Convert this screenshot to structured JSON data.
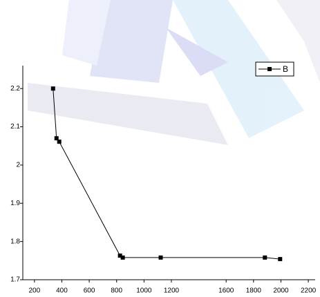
{
  "chart_data": {
    "type": "line",
    "x": [
      336,
      361,
      381,
      825,
      845,
      1122,
      1883,
      1994
    ],
    "series": [
      {
        "name": "B",
        "color": "#000000",
        "values": [
          2.2,
          2.07,
          2.061,
          1.763,
          1.758,
          1.758,
          1.758,
          1.754
        ]
      }
    ],
    "xlim": [
      115,
      2250
    ],
    "xticks": [
      200,
      400,
      600,
      800,
      1000,
      1200,
      1600,
      1800,
      2000,
      2200
    ],
    "ylim": [
      1.7,
      2.26
    ],
    "yticks": [
      1.7,
      1.8,
      1.9,
      2.0,
      2.1,
      2.2
    ],
    "legend": "top-right",
    "grid": false
  }
}
